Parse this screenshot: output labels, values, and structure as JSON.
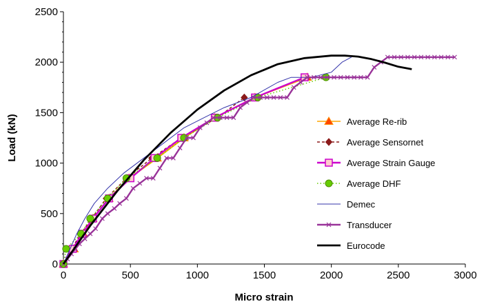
{
  "chart_data": {
    "type": "line",
    "xlabel": "Micro strain",
    "ylabel": "Load (kN)",
    "xlim": [
      0,
      3000
    ],
    "ylim": [
      0,
      2500
    ],
    "xticks": [
      "0",
      "500",
      "1000",
      "1500",
      "2000",
      "2500",
      "3000"
    ],
    "yticks": [
      "0",
      "500",
      "1000",
      "1500",
      "2000",
      "2500"
    ],
    "grid": false,
    "legend_position": "center-right",
    "series": [
      {
        "name": "Average Re-rib",
        "color": "#FFA500",
        "marker": "triangle",
        "x": [
          0,
          80,
          150,
          220,
          340,
          490,
          700,
          900,
          1130,
          1430,
          1820
        ],
        "y": [
          0,
          150,
          300,
          450,
          650,
          850,
          1050,
          1250,
          1450,
          1650,
          1850
        ]
      },
      {
        "name": "Average Sensornet",
        "color": "#8B1A1A",
        "marker": "diamond",
        "dashed": true,
        "x": [
          0,
          60,
          130,
          210,
          320,
          470,
          660,
          880,
          1150,
          1350
        ],
        "y": [
          0,
          150,
          300,
          450,
          650,
          850,
          1050,
          1250,
          1450,
          1650
        ]
      },
      {
        "name": "Average Strain Gauge",
        "color": "#CC00CC",
        "marker": "square",
        "x": [
          0,
          70,
          140,
          220,
          340,
          500,
          680,
          880,
          1130,
          1430,
          1800
        ],
        "y": [
          0,
          150,
          300,
          450,
          650,
          850,
          1050,
          1250,
          1450,
          1650,
          1850
        ]
      },
      {
        "name": "Average DHF",
        "color": "#66CC00",
        "marker": "circle",
        "dotted": true,
        "x": [
          0,
          20,
          130,
          200,
          330,
          470,
          700,
          900,
          1150,
          1450,
          1960
        ],
        "y": [
          0,
          150,
          300,
          450,
          650,
          850,
          1050,
          1250,
          1450,
          1650,
          1850
        ]
      },
      {
        "name": "Demec",
        "color": "#3333AA",
        "marker": "none",
        "x": [
          0,
          50,
          100,
          160,
          230,
          330,
          450,
          600,
          750,
          900,
          1050,
          1200,
          1400,
          1600,
          1700,
          1850,
          2000,
          2080,
          2150
        ],
        "y": [
          0,
          150,
          300,
          450,
          600,
          750,
          900,
          1050,
          1200,
          1350,
          1450,
          1550,
          1650,
          1800,
          1850,
          1850,
          1900,
          2000,
          2050
        ]
      },
      {
        "name": "Transducer",
        "color": "#993399",
        "marker": "x",
        "x": [
          0,
          30,
          60,
          90,
          120,
          160,
          200,
          240,
          290,
          330,
          380,
          420,
          470,
          520,
          570,
          620,
          670,
          720,
          770,
          820,
          870,
          920,
          970,
          1020,
          1070,
          1120,
          1170,
          1220,
          1270,
          1320,
          1370,
          1420,
          1470,
          1520,
          1570,
          1620,
          1670,
          1720,
          1770,
          1820,
          1870,
          1920,
          1970,
          2020,
          2070,
          2120,
          2170,
          2220,
          2270,
          2320,
          2370,
          2420,
          2470,
          2520,
          2570,
          2620,
          2670,
          2720,
          2770,
          2820,
          2870,
          2920
        ],
        "y": [
          0,
          50,
          100,
          150,
          200,
          250,
          300,
          350,
          450,
          500,
          550,
          600,
          650,
          750,
          800,
          850,
          850,
          950,
          1050,
          1050,
          1150,
          1250,
          1250,
          1350,
          1400,
          1450,
          1450,
          1450,
          1450,
          1550,
          1600,
          1650,
          1650,
          1650,
          1650,
          1650,
          1650,
          1750,
          1800,
          1850,
          1850,
          1850,
          1850,
          1850,
          1850,
          1850,
          1850,
          1850,
          1850,
          1950,
          2000,
          2050,
          2050,
          2050,
          2050,
          2050,
          2050,
          2050,
          2050,
          2050,
          2050,
          2050
        ]
      },
      {
        "name": "Eurocode",
        "color": "#000000",
        "marker": "none",
        "x": [
          0,
          200,
          400,
          600,
          800,
          1000,
          1200,
          1400,
          1600,
          1800,
          2000,
          2100,
          2200,
          2300,
          2400,
          2500,
          2600
        ],
        "y": [
          0,
          380,
          720,
          1030,
          1300,
          1530,
          1720,
          1870,
          1980,
          2040,
          2065,
          2065,
          2055,
          2030,
          1995,
          1955,
          1930
        ]
      }
    ]
  }
}
